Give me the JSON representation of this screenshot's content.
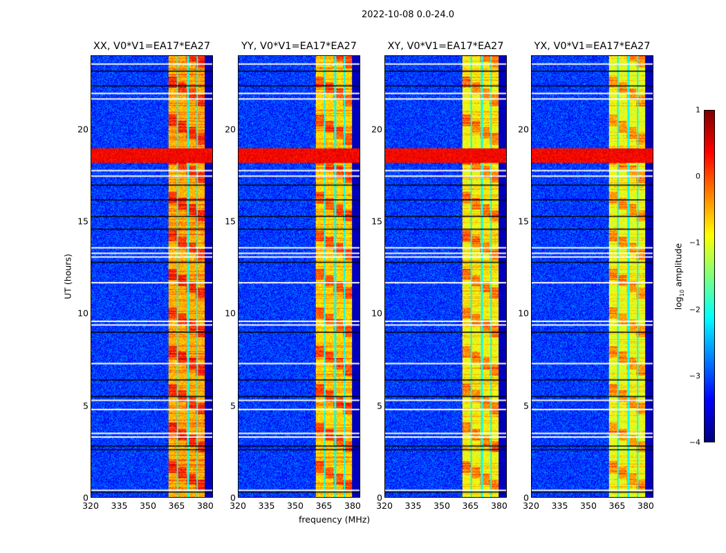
{
  "chart_data": {
    "type": "heatmap",
    "title": "2022-10-08 0.0-24.0",
    "xlabel": "frequency (MHz)",
    "ylabel": "UT (hours)",
    "xlim": [
      320,
      384
    ],
    "ylim": [
      0,
      24
    ],
    "xticks": [
      "320",
      "335",
      "350",
      "365",
      "380"
    ],
    "xtick_values": [
      320,
      335,
      350,
      365,
      380
    ],
    "yticks": [
      "0",
      "5",
      "10",
      "15",
      "20"
    ],
    "ytick_values": [
      0,
      5,
      10,
      15,
      20
    ],
    "panels": [
      {
        "title": "XX, V0*V1=EA17*EA27",
        "band_level": -0.5
      },
      {
        "title": "YY, V0*V1=EA17*EA27",
        "band_level": -0.7
      },
      {
        "title": "XY, V0*V1=EA17*EA27",
        "band_level": -0.9
      },
      {
        "title": "YX, V0*V1=EA17*EA27",
        "band_level": -1.0
      }
    ],
    "features": {
      "background_level": -3.1,
      "rfi_band_mhz": [
        360.5,
        380
      ],
      "rfi_subband_edges_mhz": [
        365.5,
        371,
        376
      ],
      "quiet_edge_mhz": [
        380,
        384
      ],
      "quiet_edge_level": -3.7,
      "strong_rfi_hours": [
        18.2,
        19.0
      ],
      "strong_rfi_level": 0.4,
      "flagged_white_hours": [
        23.6,
        22.0,
        21.7,
        17.8,
        17.5,
        13.6,
        13.3,
        13.1,
        11.7,
        9.6,
        9.4,
        7.3,
        5.3,
        4.8,
        3.5,
        3.3,
        0.4
      ],
      "flagged_black_hours": [
        23.2,
        22.4,
        17.0,
        16.2,
        15.3,
        14.6,
        12.8,
        9.0,
        6.4,
        5.5,
        2.8,
        2.6,
        0.3
      ]
    },
    "colorbar": {
      "label_prefix": "log",
      "label_sub": "10",
      "label_suffix": " amplitude",
      "colormap": "jet",
      "range": [
        -4,
        1
      ],
      "ticks": [
        "1",
        "0",
        "−1",
        "−2",
        "−3",
        "−4"
      ],
      "tick_values": [
        1,
        0,
        -1,
        -2,
        -3,
        -4
      ]
    }
  }
}
